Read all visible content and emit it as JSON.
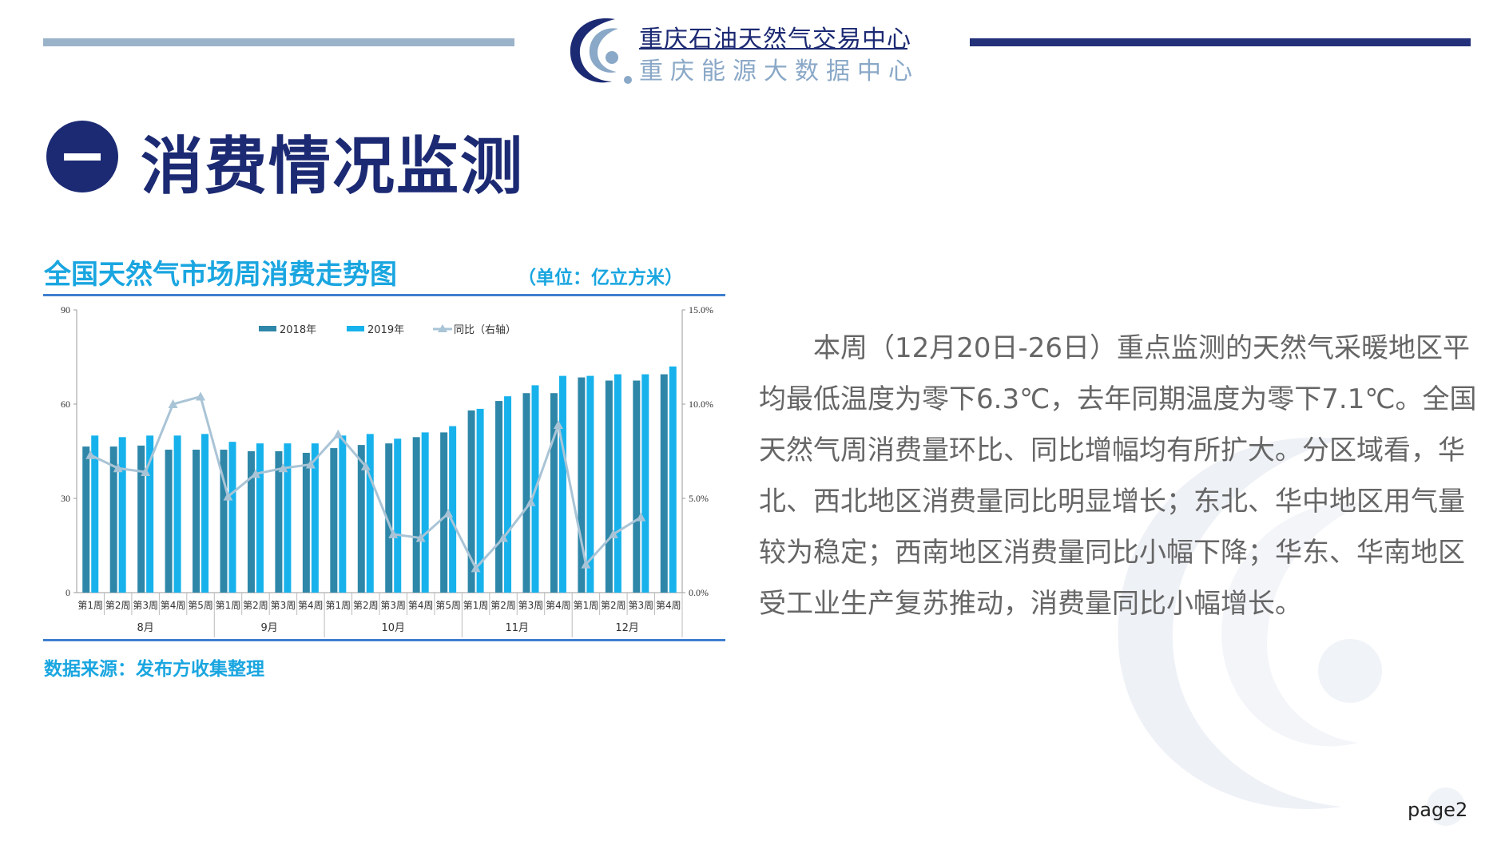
{
  "header": {
    "logo_title": "重庆石油天然气交易中心",
    "logo_subtitle": "重庆能源大数据中心"
  },
  "section": {
    "number": "一",
    "title": "消费情况监测"
  },
  "chart_panel": {
    "title": "全国天然气市场周消费走势图",
    "unit": "（单位：亿立方米）",
    "source": "数据来源：发布方收集整理"
  },
  "chart_data": {
    "type": "bar",
    "categories": [
      "第1周",
      "第2周",
      "第3周",
      "第4周",
      "第5周",
      "第1周",
      "第2周",
      "第3周",
      "第4周",
      "第1周",
      "第2周",
      "第3周",
      "第4周",
      "第5周",
      "第1周",
      "第2周",
      "第3周",
      "第4周",
      "第1周",
      "第2周",
      "第3周",
      "第4周"
    ],
    "groups": [
      {
        "label": "8月",
        "count": 5
      },
      {
        "label": "9月",
        "count": 4
      },
      {
        "label": "10月",
        "count": 5
      },
      {
        "label": "11月",
        "count": 4
      },
      {
        "label": "12月",
        "count": 4
      }
    ],
    "series": [
      {
        "name": "2018年",
        "type": "bar",
        "axis": "left",
        "color": "#2e87a8",
        "values": [
          46.5,
          46.5,
          46.8,
          45.5,
          45.5,
          45.5,
          45,
          45,
          44.5,
          46,
          47,
          47.5,
          49.5,
          51,
          58,
          61,
          63.5,
          63.5,
          68.5,
          67.5,
          67.5,
          69.5
        ]
      },
      {
        "name": "2019年",
        "type": "bar",
        "axis": "left",
        "color": "#17b2ec",
        "values": [
          50,
          49.5,
          50,
          50,
          50.5,
          48,
          47.5,
          47.5,
          47.5,
          50,
          50.5,
          49,
          51,
          53,
          58.5,
          62.5,
          66,
          69,
          69,
          69.5,
          69.5,
          72
        ]
      },
      {
        "name": "同比（右轴）",
        "type": "line",
        "axis": "right",
        "color": "#a9c4d6",
        "values": [
          7.3,
          6.6,
          6.4,
          10.0,
          10.4,
          5.1,
          6.3,
          6.6,
          6.8,
          8.4,
          6.7,
          3.1,
          2.9,
          4.2,
          1.3,
          2.9,
          4.8,
          8.9,
          1.5,
          3.1,
          4.0,
          null
        ]
      }
    ],
    "y_left": {
      "ticks": [
        "0",
        "30",
        "60",
        "90"
      ],
      "range": [
        0,
        90
      ]
    },
    "y_right": {
      "ticks": [
        "0.0%",
        "5.0%",
        "10.0%",
        "15.0%"
      ],
      "range": [
        0,
        15
      ]
    },
    "legend_position": "top-center",
    "grid": false
  },
  "paragraph": "本周（12月20日-26日）重点监测的天然气采暖地区平均最低温度为零下6.3℃，去年同期温度为零下7.1℃。全国天然气周消费量环比、同比增幅均有所扩大。分区域看，华北、西北地区消费量同比明显增长；东北、华中地区用气量较为稳定；西南地区消费量同比小幅下降；华东、华南地区受工业生产复苏推动，消费量同比小幅增长。",
  "footer": {
    "page": "page2"
  },
  "colors": {
    "navy": "#1c2a73",
    "accent": "#1aa6e0",
    "rule": "#3e7fcf"
  }
}
